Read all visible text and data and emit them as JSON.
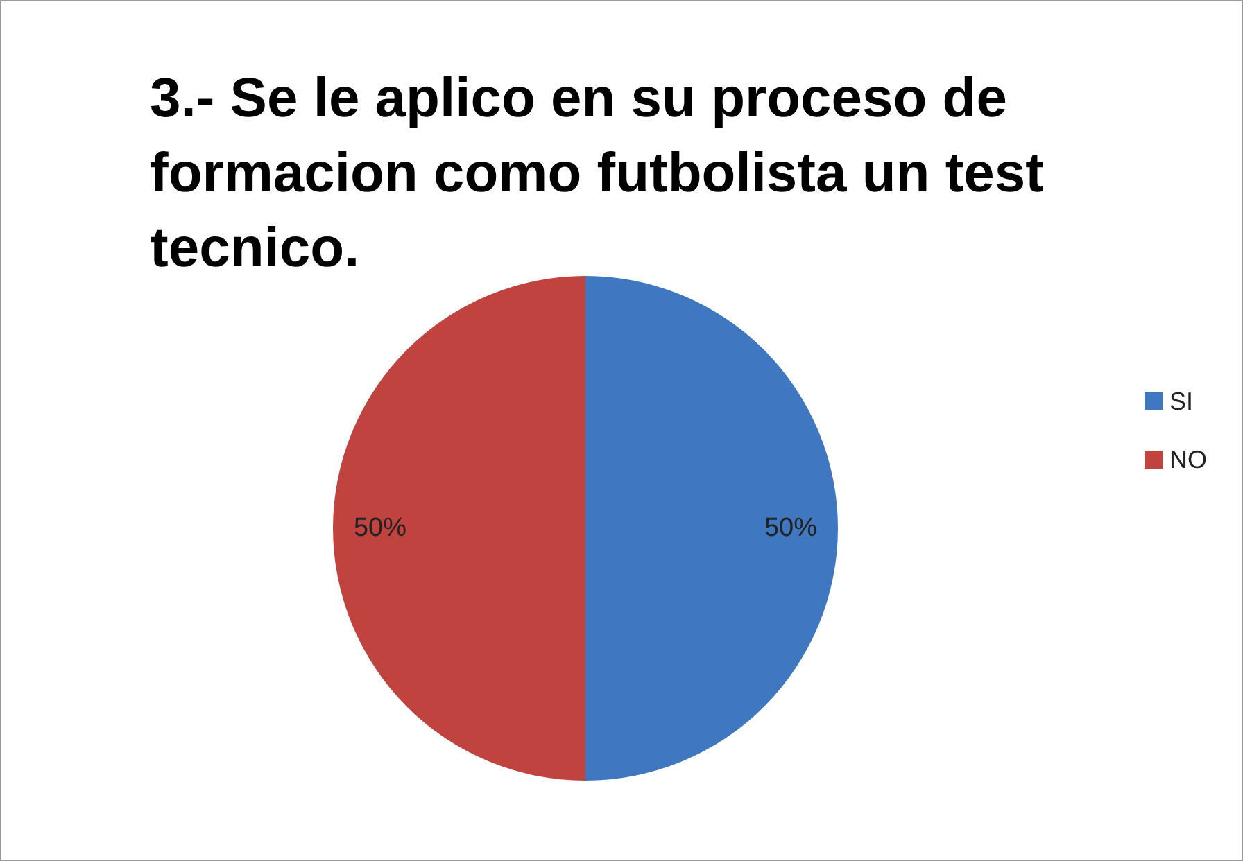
{
  "chart_data": {
    "type": "pie",
    "title": "3.- Se le aplico en su proceso de formacion como futbolista un test tecnico.",
    "categories": [
      "SI",
      "NO"
    ],
    "values": [
      50,
      50
    ],
    "colors": [
      "#3f78c0",
      "#c0433f"
    ],
    "value_labels": [
      "50%",
      "50%"
    ],
    "legend": "right"
  }
}
